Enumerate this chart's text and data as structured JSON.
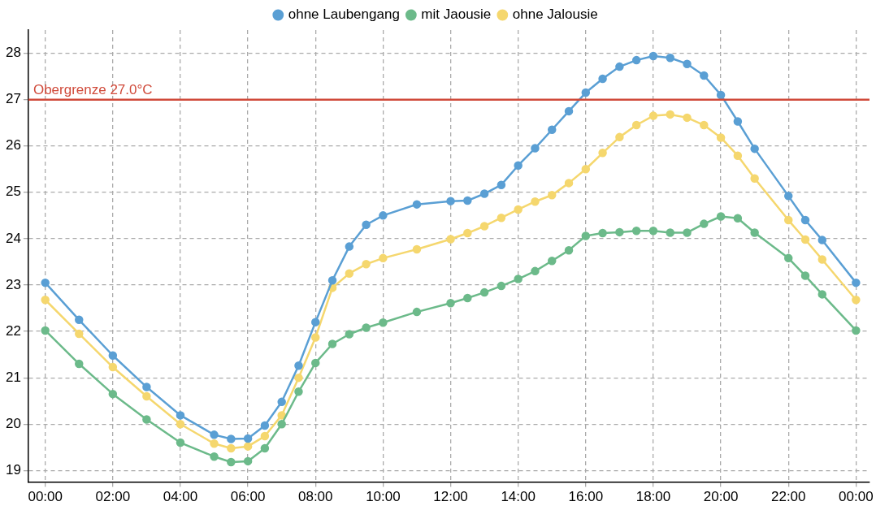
{
  "chart_data": {
    "type": "line",
    "x": [
      0,
      1,
      2,
      3,
      4,
      5,
      5.5,
      6,
      6.5,
      7,
      7.5,
      8,
      8.5,
      9,
      9.5,
      10,
      11,
      12,
      12.5,
      13,
      13.5,
      14,
      14.5,
      15,
      15.5,
      16,
      16.5,
      17,
      17.5,
      18,
      18.5,
      19,
      19.5,
      20,
      20.5,
      21,
      22,
      22.5,
      23,
      24
    ],
    "series": [
      {
        "name": "ohne Laubengang",
        "color": "#5a9fd4",
        "values": [
          23.05,
          22.25,
          21.48,
          20.8,
          20.19,
          19.77,
          19.68,
          19.69,
          19.97,
          20.48,
          21.26,
          22.2,
          23.1,
          23.83,
          24.3,
          24.5,
          24.74,
          24.81,
          24.82,
          24.97,
          25.16,
          25.58,
          25.95,
          26.35,
          26.75,
          27.15,
          27.45,
          27.71,
          27.85,
          27.94,
          27.9,
          27.77,
          27.52,
          27.1,
          26.53,
          25.94,
          24.92,
          24.4,
          23.97,
          23.05
        ]
      },
      {
        "name": "mit Jaousie",
        "color": "#6cba8a",
        "values": [
          22.02,
          21.3,
          20.65,
          20.1,
          19.6,
          19.3,
          19.18,
          19.2,
          19.48,
          20.0,
          20.7,
          21.32,
          21.73,
          21.94,
          22.08,
          22.19,
          22.42,
          22.61,
          22.72,
          22.84,
          22.98,
          23.13,
          23.3,
          23.52,
          23.75,
          24.06,
          24.12,
          24.14,
          24.17,
          24.17,
          24.13,
          24.13,
          24.32,
          24.48,
          24.44,
          24.13,
          23.58,
          23.2,
          22.8,
          22.02
        ]
      },
      {
        "name": "ohne Jalousie",
        "color": "#f5d76e",
        "values": [
          22.68,
          21.95,
          21.23,
          20.6,
          20.0,
          19.58,
          19.48,
          19.52,
          19.74,
          20.19,
          21.0,
          21.87,
          22.94,
          23.25,
          23.45,
          23.58,
          23.77,
          23.99,
          24.12,
          24.27,
          24.45,
          24.63,
          24.8,
          24.94,
          25.2,
          25.5,
          25.85,
          26.19,
          26.45,
          26.65,
          26.68,
          26.61,
          26.45,
          26.18,
          25.79,
          25.3,
          24.4,
          23.98,
          23.55,
          22.68
        ]
      }
    ],
    "xlim": [
      -0.5,
      24.4
    ],
    "xticks": [
      {
        "value": 0,
        "label": "00:00"
      },
      {
        "value": 2,
        "label": "02:00"
      },
      {
        "value": 4,
        "label": "04:00"
      },
      {
        "value": 6,
        "label": "06:00"
      },
      {
        "value": 8,
        "label": "08:00"
      },
      {
        "value": 10,
        "label": "10:00"
      },
      {
        "value": 12,
        "label": "12:00"
      },
      {
        "value": 14,
        "label": "14:00"
      },
      {
        "value": 16,
        "label": "16:00"
      },
      {
        "value": 18,
        "label": "18:00"
      },
      {
        "value": 20,
        "label": "20:00"
      },
      {
        "value": 22,
        "label": "22:00"
      },
      {
        "value": 24,
        "label": "00:00"
      }
    ],
    "ylim": [
      18.75,
      28.5
    ],
    "yticks": [
      19,
      20,
      21,
      22,
      23,
      24,
      25,
      26,
      27,
      28
    ],
    "ref_lines": [
      {
        "axis": "y",
        "value": 27,
        "label": "Obergrenze 27.0°C",
        "color": "#d04a3a"
      }
    ],
    "grid": true,
    "legend": "top",
    "marker": "circle",
    "line_style": "solid"
  }
}
